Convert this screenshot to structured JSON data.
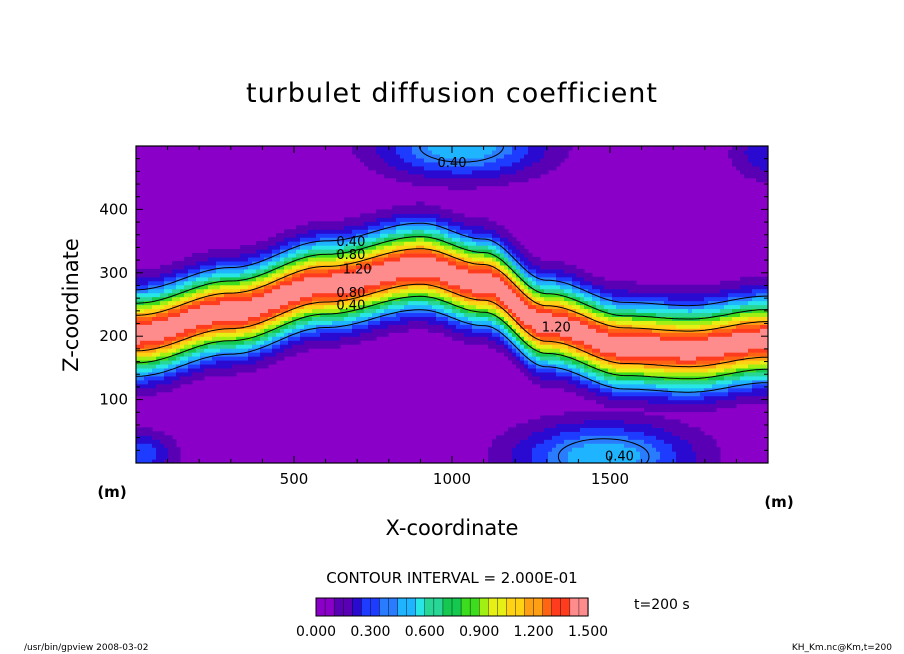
{
  "chart_data": {
    "type": "heatmap",
    "title": "turbulet diffusion coefficient",
    "xlabel": "X-coordinate",
    "ylabel": "Z-coordinate",
    "x_unit": "(m)",
    "y_unit": "(m)",
    "xlim": [
      0,
      2000
    ],
    "ylim": [
      0,
      500
    ],
    "x_ticks": [
      500,
      1000,
      1500
    ],
    "y_ticks": [
      100,
      200,
      300,
      400
    ],
    "x_tick_labels": [
      "500",
      "1000",
      "1500"
    ],
    "y_tick_labels": [
      "100",
      "200",
      "300",
      "400"
    ],
    "contour_levels": [
      0.4,
      0.8,
      1.2
    ],
    "contour_labels": [
      {
        "text": "0.40",
        "x": 1000,
        "z": 475
      },
      {
        "text": "0.40",
        "x": 680,
        "z": 350
      },
      {
        "text": "0.80",
        "x": 680,
        "z": 330
      },
      {
        "text": "1.20",
        "x": 700,
        "z": 307
      },
      {
        "text": "0.80",
        "x": 680,
        "z": 270
      },
      {
        "text": "0.40",
        "x": 680,
        "z": 250
      },
      {
        "text": "1.20",
        "x": 1330,
        "z": 215
      },
      {
        "text": "0.40",
        "x": 1530,
        "z": 12
      }
    ],
    "band": {
      "centerline": [
        [
          0,
          205
        ],
        [
          300,
          240
        ],
        [
          600,
          282
        ],
        [
          900,
          310
        ],
        [
          1100,
          285
        ],
        [
          1300,
          220
        ],
        [
          1550,
          185
        ],
        [
          1750,
          180
        ],
        [
          2000,
          195
        ]
      ],
      "core_max": 1.5
    },
    "color_range": [
      0,
      1.5
    ],
    "contour_interval_text": "CONTOUR INTERVAL = 2.000E-01",
    "colorbar_tick_labels": [
      "0.000",
      "0.300",
      "0.600",
      "0.900",
      "1.200",
      "1.500"
    ],
    "time_label": "t=200 s",
    "colors": {
      "background": "#8b00c8",
      "scale": [
        "#8b00c8",
        "#5a00b4",
        "#2a0ad0",
        "#1e3cff",
        "#2a7cff",
        "#1eb4ff",
        "#28e6e6",
        "#28d796",
        "#14c850",
        "#3cdc1e",
        "#a0f014",
        "#e6f014",
        "#ffd214",
        "#ffa014",
        "#ff6414",
        "#ff3c1e",
        "#ff8c8c"
      ]
    }
  },
  "footer": {
    "left": "/usr/bin/gpview   2008-03-02",
    "right": "KH_Km.nc@Km,t=200"
  }
}
